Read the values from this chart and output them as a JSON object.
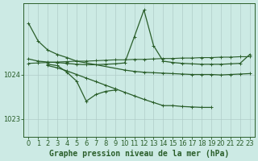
{
  "title": "Graphe pression niveau de la mer (hPa)",
  "bg_color": "#cceae4",
  "plot_bg_color": "#cceae4",
  "line_color": "#2a5e2a",
  "grid_color": "#b0ccc8",
  "xlim": [
    -0.5,
    23.5
  ],
  "ylim": [
    1022.6,
    1025.6
  ],
  "yticks": [
    1023,
    1024
  ],
  "xticks": [
    0,
    1,
    2,
    3,
    4,
    5,
    6,
    7,
    8,
    9,
    10,
    11,
    12,
    13,
    14,
    15,
    16,
    17,
    18,
    19,
    20,
    21,
    22,
    23
  ],
  "title_fontsize": 7.0,
  "tick_fontsize": 6.0,
  "series": [
    {
      "x": [
        0,
        1,
        2,
        3,
        4,
        5,
        10,
        11,
        12,
        13,
        14,
        15,
        16,
        17,
        18,
        19,
        20,
        21,
        22,
        23
      ],
      "y": [
        1025.15,
        1024.75,
        1024.55,
        1024.45,
        1024.38,
        1024.3,
        1024.1,
        1024.07,
        1024.05,
        1024.04,
        1024.03,
        1024.02,
        1024.01,
        1024.0,
        1024.0,
        1024.0,
        1023.99,
        1024.0,
        1024.01,
        1024.02
      ],
      "lw": 0.9,
      "ms": 3.0
    },
    {
      "x": [
        0,
        1,
        2,
        3,
        4,
        5,
        6,
        7,
        8,
        9,
        10,
        11,
        12,
        13,
        14,
        15,
        16,
        17,
        18,
        19,
        20,
        21,
        22,
        23
      ],
      "y": [
        1024.35,
        1024.3,
        1024.28,
        1024.27,
        1024.25,
        1024.23,
        1024.22,
        1024.22,
        1024.23,
        1024.24,
        1024.26,
        1024.85,
        1025.45,
        1024.65,
        1024.3,
        1024.27,
        1024.25,
        1024.24,
        1024.23,
        1024.23,
        1024.23,
        1024.24,
        1024.25,
        1024.45
      ],
      "lw": 0.9,
      "ms": 3.0
    },
    {
      "x": [
        0,
        1,
        2,
        3,
        4,
        5,
        6,
        7,
        8,
        9,
        10,
        11,
        12,
        13,
        14,
        15,
        16,
        17,
        18,
        19,
        20,
        21,
        22,
        23
      ],
      "y": [
        1024.25,
        1024.26,
        1024.27,
        1024.28,
        1024.29,
        1024.3,
        1024.3,
        1024.31,
        1024.32,
        1024.33,
        1024.33,
        1024.34,
        1024.34,
        1024.35,
        1024.36,
        1024.36,
        1024.37,
        1024.37,
        1024.38,
        1024.38,
        1024.39,
        1024.39,
        1024.4,
        1024.4
      ],
      "lw": 0.8,
      "ms": 2.5
    },
    {
      "x": [
        2,
        3,
        4,
        5,
        6,
        7,
        8,
        9
      ],
      "y": [
        1024.23,
        1024.2,
        1024.05,
        1023.85,
        1023.4,
        1023.55,
        1023.62,
        1023.65
      ],
      "lw": 0.9,
      "ms": 3.0
    },
    {
      "x": [
        2,
        3,
        4,
        5,
        6,
        7,
        8,
        9,
        10,
        11,
        12,
        13,
        14,
        15,
        16,
        17,
        18,
        19
      ],
      "y": [
        1024.2,
        1024.15,
        1024.08,
        1024.0,
        1023.92,
        1023.84,
        1023.76,
        1023.68,
        1023.6,
        1023.52,
        1023.44,
        1023.37,
        1023.3,
        1023.3,
        1023.28,
        1023.27,
        1023.26,
        1023.26
      ],
      "lw": 0.9,
      "ms": 3.0
    }
  ]
}
